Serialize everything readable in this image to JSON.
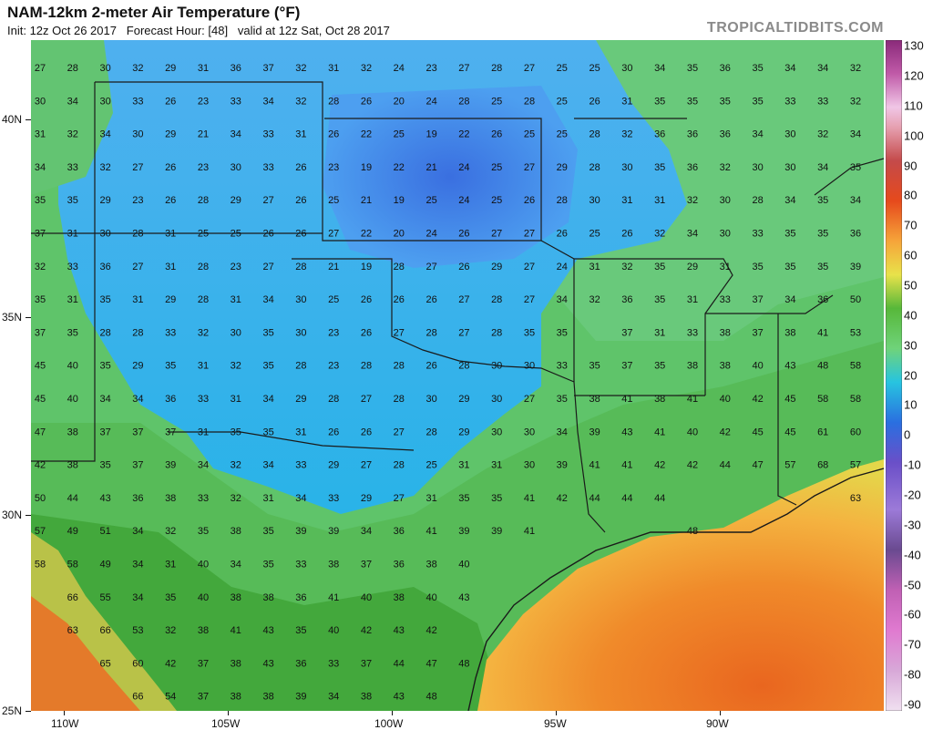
{
  "header": {
    "title": "NAM-12km 2-meter Air Temperature (°F)",
    "subtitle": "Init: 12z Oct 26 2017   Forecast Hour: [48]   valid at 12z Sat, Oct 28 2017",
    "brand": "TROPICALTIDBITS.COM"
  },
  "axes": {
    "lat_labels": [
      "40N",
      "35N",
      "30N",
      "25N"
    ],
    "lon_labels": [
      "110W",
      "105W",
      "100W",
      "95W",
      "90W"
    ]
  },
  "colorbar": {
    "labels": [
      "130",
      "120",
      "110",
      "100",
      "90",
      "80",
      "70",
      "60",
      "50",
      "40",
      "30",
      "20",
      "10",
      "0",
      "-10",
      "-20",
      "-30",
      "-40",
      "-50",
      "-60",
      "-70",
      "-80",
      "-90"
    ]
  },
  "chart_data": {
    "type": "heatmap",
    "title": "NAM-12km 2-meter Air Temperature (°F)",
    "units": "°F",
    "lat_range": [
      25,
      42
    ],
    "lon_range": [
      -111,
      -85
    ],
    "grid_columns": 27,
    "station_grid": [
      [
        27,
        28,
        30,
        32,
        29,
        31,
        36,
        37,
        32,
        31,
        32,
        24,
        23,
        27,
        28,
        27,
        25,
        25,
        30,
        34,
        35,
        36,
        35,
        34,
        34,
        32,
        null
      ],
      [
        30,
        34,
        30,
        33,
        26,
        23,
        33,
        34,
        32,
        28,
        26,
        20,
        24,
        28,
        25,
        28,
        25,
        26,
        31,
        35,
        35,
        35,
        35,
        33,
        33,
        32,
        null
      ],
      [
        31,
        32,
        34,
        30,
        29,
        21,
        34,
        33,
        31,
        26,
        22,
        25,
        19,
        22,
        26,
        25,
        25,
        28,
        32,
        36,
        36,
        36,
        34,
        30,
        32,
        34,
        null
      ],
      [
        34,
        33,
        32,
        27,
        26,
        23,
        30,
        33,
        26,
        23,
        19,
        22,
        21,
        24,
        25,
        27,
        29,
        28,
        30,
        35,
        36,
        32,
        30,
        30,
        34,
        35,
        null
      ],
      [
        35,
        35,
        29,
        23,
        26,
        28,
        29,
        27,
        26,
        25,
        21,
        19,
        25,
        24,
        25,
        26,
        28,
        30,
        31,
        31,
        32,
        30,
        28,
        34,
        35,
        34,
        null
      ],
      [
        37,
        31,
        30,
        28,
        31,
        25,
        25,
        26,
        26,
        27,
        22,
        20,
        24,
        26,
        27,
        27,
        26,
        25,
        26,
        32,
        34,
        30,
        33,
        35,
        35,
        36,
        null
      ],
      [
        32,
        33,
        36,
        27,
        31,
        28,
        23,
        27,
        28,
        21,
        19,
        28,
        27,
        26,
        29,
        27,
        24,
        31,
        32,
        35,
        29,
        31,
        35,
        35,
        35,
        39,
        null
      ],
      [
        35,
        31,
        35,
        31,
        29,
        28,
        31,
        34,
        30,
        25,
        26,
        26,
        26,
        27,
        28,
        27,
        34,
        32,
        36,
        35,
        31,
        33,
        37,
        34,
        36,
        50,
        null
      ],
      [
        37,
        35,
        28,
        28,
        33,
        32,
        30,
        35,
        30,
        23,
        26,
        27,
        28,
        27,
        28,
        35,
        35,
        null,
        37,
        31,
        33,
        38,
        37,
        38,
        41,
        53,
        null
      ],
      [
        45,
        40,
        35,
        29,
        35,
        31,
        32,
        35,
        28,
        23,
        28,
        28,
        26,
        28,
        30,
        30,
        33,
        35,
        37,
        35,
        38,
        38,
        40,
        43,
        48,
        58,
        null
      ],
      [
        45,
        40,
        34,
        34,
        36,
        33,
        31,
        34,
        29,
        28,
        27,
        28,
        30,
        29,
        30,
        27,
        35,
        38,
        41,
        38,
        41,
        40,
        42,
        45,
        58,
        58,
        null
      ],
      [
        47,
        38,
        37,
        37,
        37,
        31,
        35,
        35,
        31,
        26,
        26,
        27,
        28,
        29,
        30,
        30,
        34,
        39,
        43,
        41,
        40,
        42,
        45,
        45,
        61,
        60,
        null
      ],
      [
        42,
        38,
        35,
        37,
        39,
        34,
        32,
        34,
        33,
        29,
        27,
        28,
        25,
        31,
        31,
        30,
        39,
        41,
        41,
        42,
        42,
        44,
        47,
        57,
        68,
        57,
        null
      ],
      [
        50,
        44,
        43,
        36,
        38,
        33,
        32,
        31,
        34,
        33,
        29,
        27,
        31,
        35,
        35,
        41,
        42,
        44,
        44,
        44,
        null,
        null,
        null,
        null,
        null,
        63,
        null
      ],
      [
        57,
        49,
        51,
        34,
        32,
        35,
        38,
        35,
        39,
        39,
        34,
        36,
        41,
        39,
        39,
        41,
        null,
        null,
        null,
        null,
        48,
        null,
        null,
        null,
        null,
        null,
        null
      ],
      [
        58,
        58,
        49,
        34,
        31,
        40,
        34,
        35,
        33,
        38,
        37,
        36,
        38,
        40,
        null,
        null,
        null,
        null,
        null,
        null,
        null,
        null,
        null,
        null,
        null,
        null,
        null
      ],
      [
        null,
        66,
        55,
        34,
        35,
        40,
        38,
        38,
        36,
        41,
        40,
        38,
        40,
        43,
        null,
        null,
        null,
        null,
        null,
        null,
        null,
        null,
        null,
        null,
        null,
        null,
        null
      ],
      [
        null,
        63,
        66,
        53,
        32,
        38,
        41,
        43,
        35,
        40,
        42,
        43,
        42,
        null,
        null,
        null,
        null,
        null,
        null,
        null,
        null,
        null,
        null,
        null,
        null,
        null,
        null
      ],
      [
        null,
        null,
        65,
        60,
        42,
        37,
        38,
        43,
        36,
        33,
        37,
        44,
        47,
        48,
        null,
        null,
        null,
        null,
        null,
        null,
        null,
        null,
        null,
        null,
        null,
        null,
        null
      ],
      [
        null,
        null,
        null,
        66,
        54,
        37,
        38,
        38,
        39,
        34,
        38,
        43,
        48,
        null,
        null,
        null,
        null,
        null,
        null,
        null,
        null,
        null,
        null,
        null,
        null,
        null,
        null
      ]
    ]
  }
}
